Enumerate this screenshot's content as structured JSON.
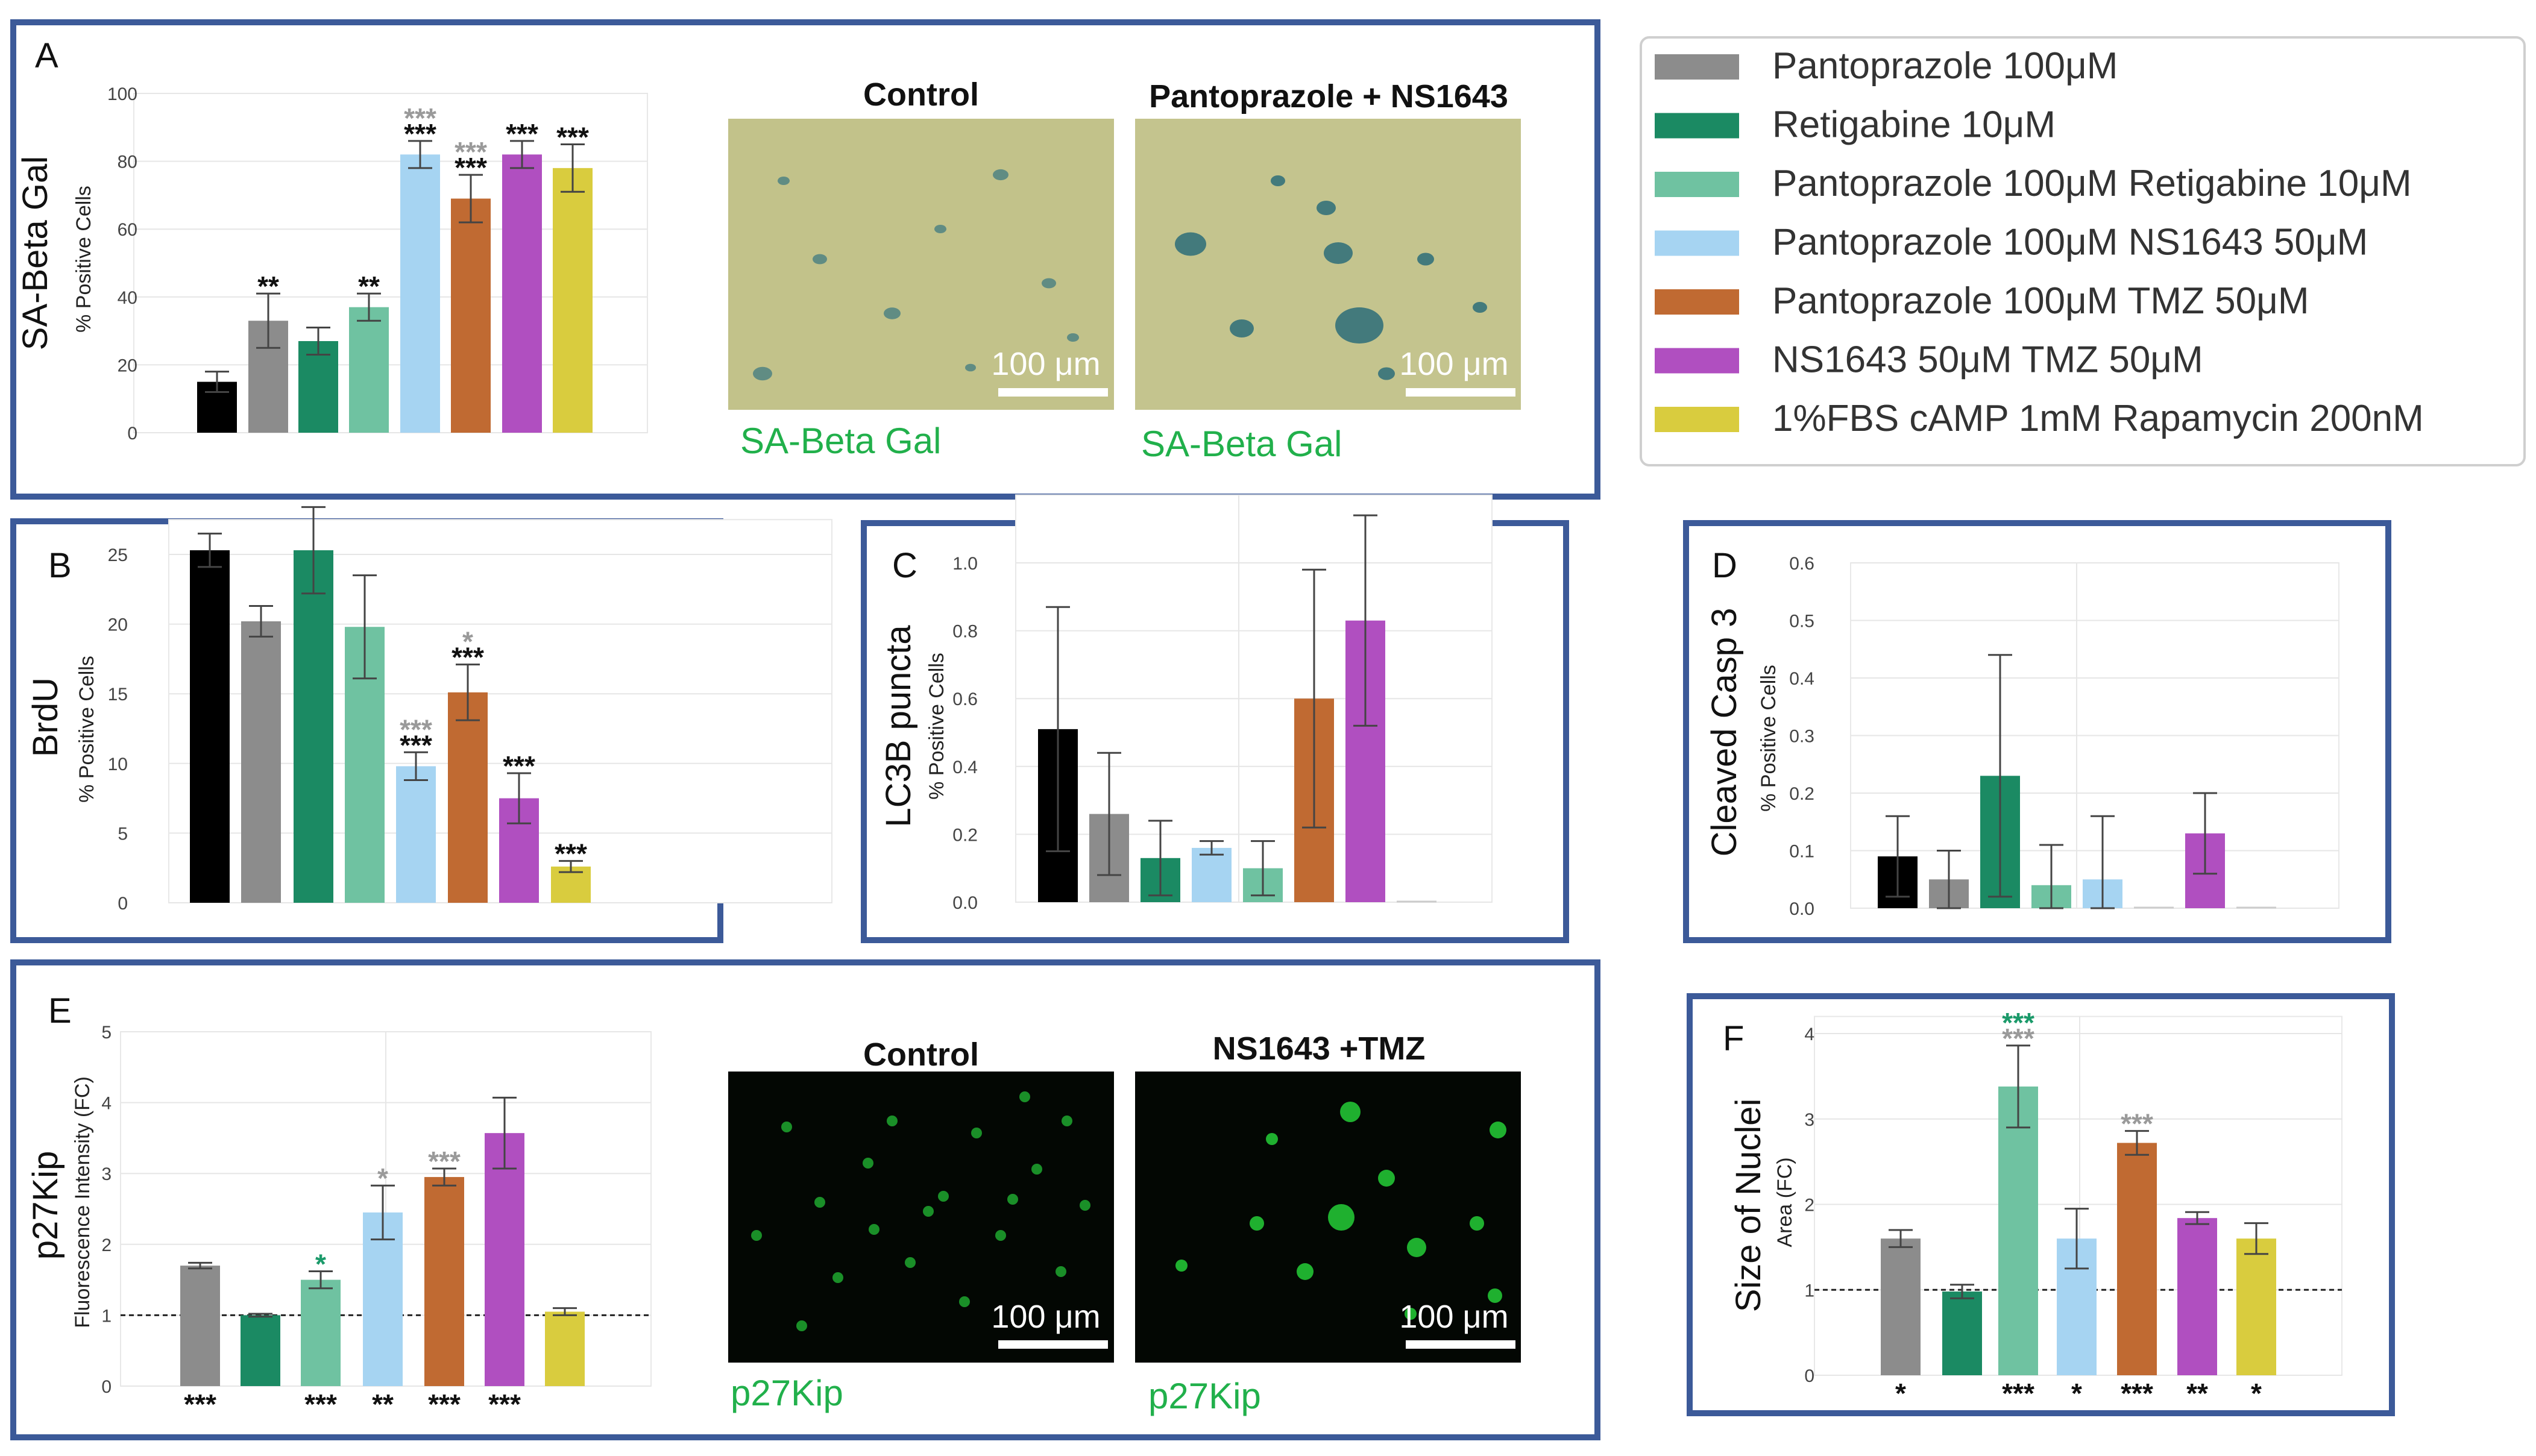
{
  "legend": {
    "items": [
      {
        "label": "Pantoprazole 100μM",
        "color": "#8c8c8c"
      },
      {
        "label": "Retigabine 10μM",
        "color": "#1b8a63"
      },
      {
        "label": "Pantoprazole 100μM Retigabine 10μM",
        "color": "#6fc2a1"
      },
      {
        "label": "Pantoprazole 100μM NS1643 50μM",
        "color": "#a6d4f2"
      },
      {
        "label": "Pantoprazole 100μM TMZ 50μM",
        "color": "#c06a32"
      },
      {
        "label": "NS1643 50μM TMZ 50μM",
        "color": "#b04fc0"
      },
      {
        "label": "1%FBS cAMP 1mM Rapamycin 200nM",
        "color": "#d9cc3e"
      }
    ]
  },
  "colors": {
    "control": "#000000",
    "frame": "#3c5a99",
    "green_label": "#21b04b",
    "sig_gray": "#9a9a9a",
    "sig_black": "#111111",
    "sig_green": "#1b9a6a"
  },
  "micrographs": {
    "A": {
      "title_left": "Control",
      "title_right": "Pantoprazole + NS1643",
      "scale": "100 μm",
      "caption": "SA-Beta Gal"
    },
    "E": {
      "title_left": "Control",
      "title_right": "NS1643 +TMZ",
      "scale": "100 μm",
      "caption": "p27Kip"
    }
  },
  "chart_data": [
    {
      "panel": "A",
      "type": "bar",
      "title": "SA-Beta Gal",
      "ylabel": "% Positive Cells",
      "ylim": [
        0,
        100
      ],
      "yticks": [
        0,
        20,
        40,
        60,
        80,
        100
      ],
      "categories": [
        "Control",
        "Pantoprazole 100μM",
        "Retigabine 10μM",
        "Pantoprazole 100μM Retigabine 10μM",
        "Pantoprazole 100μM NS1643 50μM",
        "Pantoprazole 100μM TMZ 50μM",
        "NS1643 50μM TMZ 50μM",
        "1%FBS cAMP 1mM Rapamycin 200nM"
      ],
      "values": [
        15,
        33,
        27,
        37,
        82,
        69,
        82,
        78
      ],
      "errors": [
        3,
        8,
        4,
        4,
        4,
        7,
        4,
        7
      ],
      "significance": [
        {
          "bar": 1,
          "marks": [
            {
              "text": "**",
              "tone": "black"
            }
          ]
        },
        {
          "bar": 3,
          "marks": [
            {
              "text": "**",
              "tone": "black"
            }
          ]
        },
        {
          "bar": 4,
          "marks": [
            {
              "text": "***",
              "tone": "gray"
            },
            {
              "text": "***",
              "tone": "black"
            }
          ]
        },
        {
          "bar": 5,
          "marks": [
            {
              "text": "***",
              "tone": "gray"
            },
            {
              "text": "***",
              "tone": "black"
            }
          ]
        },
        {
          "bar": 6,
          "marks": [
            {
              "text": "***",
              "tone": "black"
            }
          ]
        },
        {
          "bar": 7,
          "marks": [
            {
              "text": "***",
              "tone": "black"
            }
          ]
        }
      ]
    },
    {
      "panel": "B",
      "type": "bar",
      "title": "BrdU",
      "ylabel": "% Positive Cells",
      "ylim": [
        0,
        27.5
      ],
      "yticks": [
        0,
        5,
        10,
        15,
        20,
        25
      ],
      "categories": [
        "Control",
        "Pantoprazole 100μM",
        "Retigabine 10μM",
        "Pantoprazole 100μM Retigabine 10μM",
        "Pantoprazole 100μM NS1643 50μM",
        "Pantoprazole 100μM TMZ 50μM",
        "NS1643 50μM TMZ 50μM",
        "1%FBS cAMP 1mM Rapamycin 200nM"
      ],
      "values": [
        25.3,
        20.2,
        25.3,
        19.8,
        9.8,
        15.1,
        7.5,
        2.6
      ],
      "errors": [
        1.2,
        1.1,
        3.1,
        3.7,
        1.0,
        2.0,
        1.8,
        0.4
      ],
      "significance": [
        {
          "bar": 4,
          "marks": [
            {
              "text": "***",
              "tone": "gray"
            },
            {
              "text": "***",
              "tone": "black"
            }
          ]
        },
        {
          "bar": 5,
          "marks": [
            {
              "text": "*",
              "tone": "gray"
            },
            {
              "text": "***",
              "tone": "black"
            }
          ]
        },
        {
          "bar": 6,
          "marks": [
            {
              "text": "***",
              "tone": "black"
            }
          ]
        },
        {
          "bar": 7,
          "marks": [
            {
              "text": "***",
              "tone": "black"
            }
          ]
        }
      ]
    },
    {
      "panel": "C",
      "type": "bar",
      "title": "LC3B puncta",
      "ylabel": "% Positive Cells",
      "ylim": [
        0,
        1.2
      ],
      "yticks": [
        "0.0",
        "0.2",
        "0.4",
        "0.6",
        "0.8",
        "1.0"
      ],
      "categories": [
        "Control",
        "Pantoprazole 100μM",
        "Retigabine 10μM",
        "Pantoprazole 100μM NS1643 50μM",
        "Pantoprazole 100μM Retigabine 10μM",
        "Pantoprazole 100μM TMZ 50μM",
        "NS1643 50μM TMZ 50μM",
        "1%FBS cAMP 1mM Rapamycin 200nM"
      ],
      "values": [
        0.51,
        0.26,
        0.13,
        0.16,
        0.1,
        0.6,
        0.83,
        0.0
      ],
      "errors": [
        0.36,
        0.18,
        0.11,
        0.02,
        0.08,
        0.38,
        0.31,
        0.0
      ]
    },
    {
      "panel": "D",
      "type": "bar",
      "title": "Cleaved Casp 3",
      "ylabel": "% Positive Cells",
      "ylim": [
        0,
        0.6
      ],
      "yticks": [
        "0.0",
        "0.1",
        "0.2",
        "0.3",
        "0.4",
        "0.5",
        "0.6"
      ],
      "categories": [
        "Control",
        "Pantoprazole 100μM",
        "Retigabine 10μM",
        "Pantoprazole 100μM Retigabine 10μM",
        "Pantoprazole 100μM NS1643 50μM",
        "Pantoprazole 100μM TMZ 50μM",
        "NS1643 50μM TMZ 50μM",
        "1%FBS cAMP 1mM Rapamycin 200nM"
      ],
      "values": [
        0.09,
        0.05,
        0.23,
        0.04,
        0.05,
        0.0,
        0.13,
        0.0
      ],
      "errors": [
        0.07,
        0.05,
        0.21,
        0.07,
        0.11,
        0.0,
        0.07,
        0.0
      ]
    },
    {
      "panel": "E",
      "type": "bar",
      "title": "p27Kip",
      "ylabel": "Fluorescence Intensity (FC)",
      "ylim": [
        0,
        5
      ],
      "yticks": [
        0,
        1,
        2,
        3,
        4,
        5
      ],
      "reference_line": 1,
      "categories": [
        "Pantoprazole 100μM",
        "Retigabine 10μM",
        "Pantoprazole 100μM Retigabine 10μM",
        "Pantoprazole 100μM NS1643 50μM",
        "Pantoprazole 100μM TMZ 50μM",
        "NS1643 50μM TMZ 50μM",
        "1%FBS cAMP 1mM Rapamycin 200nM"
      ],
      "values": [
        1.7,
        1.0,
        1.5,
        2.45,
        2.95,
        3.57,
        1.05
      ],
      "errors": [
        0.04,
        0.02,
        0.12,
        0.38,
        0.12,
        0.5,
        0.05
      ],
      "significance": [
        {
          "bar": 2,
          "marks": [
            {
              "text": "*",
              "tone": "green"
            }
          ]
        },
        {
          "bar": 3,
          "marks": [
            {
              "text": "*",
              "tone": "gray"
            }
          ]
        },
        {
          "bar": 4,
          "marks": [
            {
              "text": "***",
              "tone": "gray"
            }
          ]
        }
      ],
      "below_marks": [
        "***",
        "",
        "***",
        "**",
        "***",
        "***",
        ""
      ]
    },
    {
      "panel": "F",
      "type": "bar",
      "title": "Size of Nuclei",
      "ylabel": "Area (FC)",
      "ylim": [
        0,
        4.2
      ],
      "yticks": [
        0,
        1,
        2,
        3,
        4
      ],
      "reference_line": 1,
      "categories": [
        "Pantoprazole 100μM",
        "Retigabine 10μM",
        "Pantoprazole 100μM Retigabine 10μM",
        "Pantoprazole 100μM NS1643 50μM",
        "Pantoprazole 100μM TMZ 50μM",
        "NS1643 50μM TMZ 50μM",
        "1%FBS cAMP 1mM Rapamycin 200nM"
      ],
      "values": [
        1.6,
        0.98,
        3.38,
        1.6,
        2.72,
        1.84,
        1.6
      ],
      "errors": [
        0.1,
        0.08,
        0.48,
        0.35,
        0.14,
        0.07,
        0.18
      ],
      "significance": [
        {
          "bar": 2,
          "marks": [
            {
              "text": "***",
              "tone": "green"
            },
            {
              "text": "***",
              "tone": "gray"
            }
          ]
        },
        {
          "bar": 4,
          "marks": [
            {
              "text": "***",
              "tone": "gray"
            }
          ]
        }
      ],
      "below_marks": [
        "*",
        "",
        "***",
        "*",
        "***",
        "**",
        "*"
      ]
    }
  ]
}
